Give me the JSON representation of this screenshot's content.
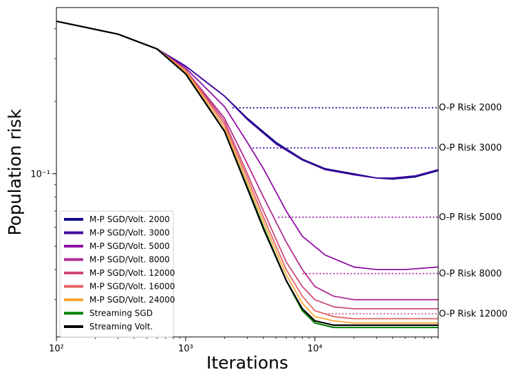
{
  "chart_data": {
    "type": "line",
    "xlabel": "Iterations",
    "ylabel": "Population risk",
    "xscale": "log",
    "yscale": "log",
    "xlim": [
      100,
      90000
    ],
    "ylim": [
      0.021,
      0.49
    ],
    "grid": false,
    "legend_position": "lower-left",
    "x_ticks": [
      {
        "value": 100,
        "label": "10²"
      },
      {
        "value": 1000,
        "label": "10³"
      },
      {
        "value": 10000,
        "label": "10⁴"
      }
    ],
    "y_ticks": [
      {
        "value": 0.1,
        "label": "10⁻¹"
      }
    ],
    "series": [
      {
        "name": "M-P SGD/Volt. 2000",
        "color": "#0d0887",
        "x": [
          100,
          300,
          600,
          1000,
          2000,
          3000,
          5000,
          8000,
          12000,
          20000,
          30000,
          40000,
          60000,
          90000
        ],
        "y": [
          0.43,
          0.38,
          0.33,
          0.28,
          0.21,
          0.17,
          0.135,
          0.115,
          0.105,
          0.1,
          0.096,
          0.095,
          0.097,
          0.103
        ]
      },
      {
        "name": "M-P SGD/Volt. 3000",
        "color": "#41049d",
        "x": [
          100,
          300,
          600,
          1000,
          2000,
          3000,
          5000,
          8000,
          12000,
          20000,
          30000,
          40000,
          60000,
          90000
        ],
        "y": [
          0.43,
          0.38,
          0.33,
          0.28,
          0.21,
          0.168,
          0.133,
          0.114,
          0.104,
          0.099,
          0.096,
          0.096,
          0.098,
          0.104
        ]
      },
      {
        "name": "M-P SGD/Volt. 5000",
        "color": "#8f0da4",
        "x": [
          100,
          300,
          600,
          1000,
          2000,
          3000,
          4000,
          6000,
          8000,
          12000,
          20000,
          30000,
          50000,
          90000
        ],
        "y": [
          0.43,
          0.38,
          0.33,
          0.275,
          0.19,
          0.135,
          0.105,
          0.07,
          0.055,
          0.046,
          0.041,
          0.04,
          0.04,
          0.041
        ]
      },
      {
        "name": "M-P SGD/Volt. 8000",
        "color": "#b12a90",
        "x": [
          100,
          300,
          600,
          1000,
          2000,
          3000,
          4000,
          6000,
          8000,
          10000,
          14000,
          20000,
          40000,
          90000
        ],
        "y": [
          0.43,
          0.38,
          0.33,
          0.27,
          0.17,
          0.11,
          0.08,
          0.052,
          0.04,
          0.034,
          0.031,
          0.03,
          0.03,
          0.03
        ]
      },
      {
        "name": "M-P SGD/Volt. 12000",
        "color": "#cc4778",
        "x": [
          100,
          300,
          600,
          1000,
          2000,
          3000,
          4000,
          6000,
          8000,
          10000,
          14000,
          20000,
          40000,
          90000
        ],
        "y": [
          0.43,
          0.38,
          0.33,
          0.27,
          0.165,
          0.1,
          0.07,
          0.043,
          0.034,
          0.03,
          0.028,
          0.0275,
          0.0275,
          0.0275
        ]
      },
      {
        "name": "M-P SGD/Volt. 16000",
        "color": "#e16462",
        "x": [
          100,
          300,
          600,
          1000,
          2000,
          3000,
          4000,
          6000,
          8000,
          10000,
          14000,
          20000,
          40000,
          90000
        ],
        "y": [
          0.43,
          0.38,
          0.33,
          0.27,
          0.16,
          0.096,
          0.066,
          0.04,
          0.031,
          0.027,
          0.0255,
          0.025,
          0.025,
          0.025
        ]
      },
      {
        "name": "M-P SGD/Volt. 24000",
        "color": "#fca636",
        "x": [
          100,
          300,
          600,
          1000,
          2000,
          3000,
          4000,
          6000,
          8000,
          10000,
          14000,
          20000,
          40000,
          90000
        ],
        "y": [
          0.43,
          0.38,
          0.33,
          0.265,
          0.155,
          0.092,
          0.063,
          0.038,
          0.029,
          0.0255,
          0.0245,
          0.024,
          0.024,
          0.024
        ]
      },
      {
        "name": "Streaming SGD",
        "color": "#008000",
        "x": [
          100,
          300,
          600,
          1000,
          2000,
          3000,
          4000,
          6000,
          8000,
          10000,
          14000,
          20000,
          40000,
          90000
        ],
        "y": [
          0.43,
          0.38,
          0.33,
          0.26,
          0.15,
          0.088,
          0.06,
          0.036,
          0.027,
          0.024,
          0.023,
          0.023,
          0.023,
          0.023
        ]
      },
      {
        "name": "Streaming Volt.",
        "color": "#000000",
        "x": [
          100,
          300,
          600,
          1000,
          2000,
          3000,
          4000,
          6000,
          8000,
          10000,
          14000,
          20000,
          40000,
          90000
        ],
        "y": [
          0.43,
          0.38,
          0.33,
          0.26,
          0.15,
          0.087,
          0.059,
          0.036,
          0.0275,
          0.0245,
          0.0235,
          0.0235,
          0.0235,
          0.0235
        ]
      }
    ],
    "annotations": [
      {
        "text": "O-P Risk 2000",
        "y": 0.188,
        "x_start": 2300,
        "color": "#0d0887"
      },
      {
        "text": "O-P Risk 3000",
        "y": 0.128,
        "x_start": 3300,
        "color": "#41049d"
      },
      {
        "text": "O-P Risk 5000",
        "y": 0.066,
        "x_start": 5200,
        "color": "#8f0da4"
      },
      {
        "text": "O-P Risk 8000",
        "y": 0.0385,
        "x_start": 8000,
        "color": "#b12a90"
      },
      {
        "text": "O-P Risk 12000",
        "y": 0.0262,
        "x_start": 12000,
        "color": "#cc4778"
      }
    ]
  }
}
